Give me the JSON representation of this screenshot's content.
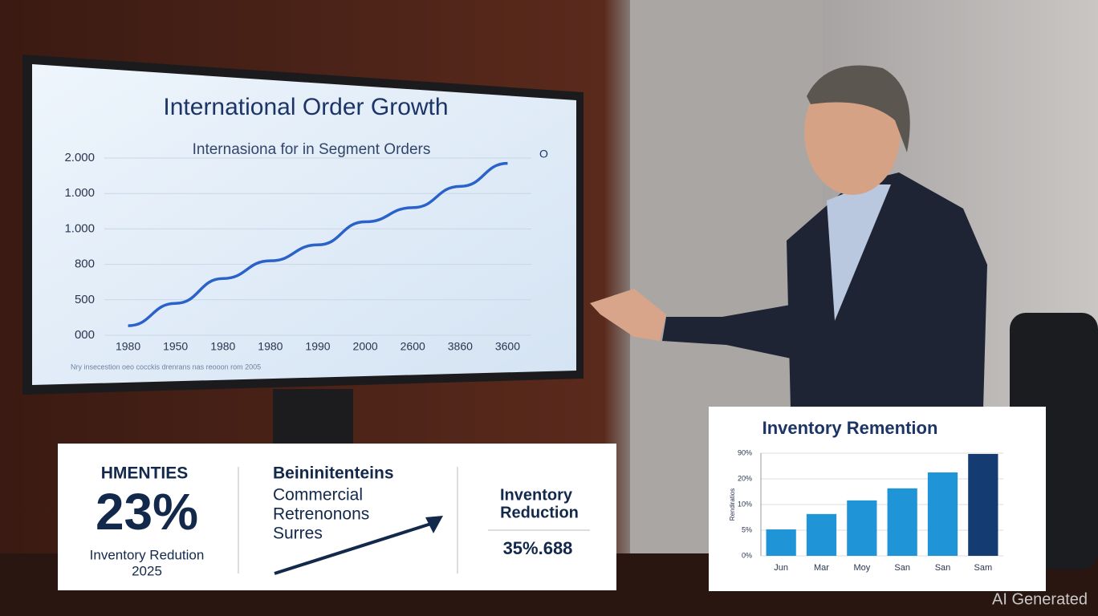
{
  "chart_data": [
    {
      "type": "line",
      "title": "International Order Growth",
      "subtitle": "Internasiona for in Segment Orders",
      "categories": [
        "1980",
        "1950",
        "1980",
        "1980",
        "1990",
        "2000",
        "2600",
        "3860",
        "3600"
      ],
      "values": [
        0.27,
        0.9,
        1.6,
        2.1,
        2.55,
        3.2,
        3.6,
        4.2,
        4.85
      ],
      "color": "#2a62c9",
      "ylim": [
        0,
        5
      ],
      "yticks": [
        {
          "value": 0,
          "label": "000"
        },
        {
          "value": 1,
          "label": "500"
        },
        {
          "value": 2,
          "label": "800"
        },
        {
          "value": 3,
          "label": "1.000"
        },
        {
          "value": 4,
          "label": "1.000"
        },
        {
          "value": 5,
          "label": "2.000"
        }
      ],
      "grid": true,
      "annotation": "O",
      "note": "Nry insecestion oeo cocckis drenrans nas reooon rom 2005"
    },
    {
      "type": "bar",
      "title": "Inventory Remention",
      "ylabel": "Rendiratios",
      "categories": [
        "Jun",
        "Mar",
        "Moy",
        "San",
        "San",
        "Sam"
      ],
      "values": [
        1.03,
        1.63,
        2.16,
        2.63,
        3.25,
        3.97
      ],
      "colors": [
        "#1f95d8",
        "#1f95d8",
        "#1f95d8",
        "#1f95d8",
        "#1f95d8",
        "#143c72"
      ],
      "ylim": [
        0,
        4
      ],
      "yticks": [
        {
          "value": 0,
          "label": "0%"
        },
        {
          "value": 1,
          "label": "5%"
        },
        {
          "value": 2,
          "label": "10%"
        },
        {
          "value": 3,
          "label": "20%"
        },
        {
          "value": 4,
          "label": "90%"
        }
      ],
      "grid": true
    }
  ],
  "panel": {
    "left": {
      "heading": "HMENTIES",
      "value": "23%",
      "caption": "Inventory Redution",
      "year": "2025"
    },
    "middle": {
      "heading": "Beininitenteins",
      "lines": [
        "Commercial",
        "Retrenonons",
        "Surres"
      ]
    },
    "right": {
      "heading": [
        "Inventory",
        "Reduction"
      ],
      "value": "35%.688"
    }
  },
  "watermark": "AI Generated"
}
